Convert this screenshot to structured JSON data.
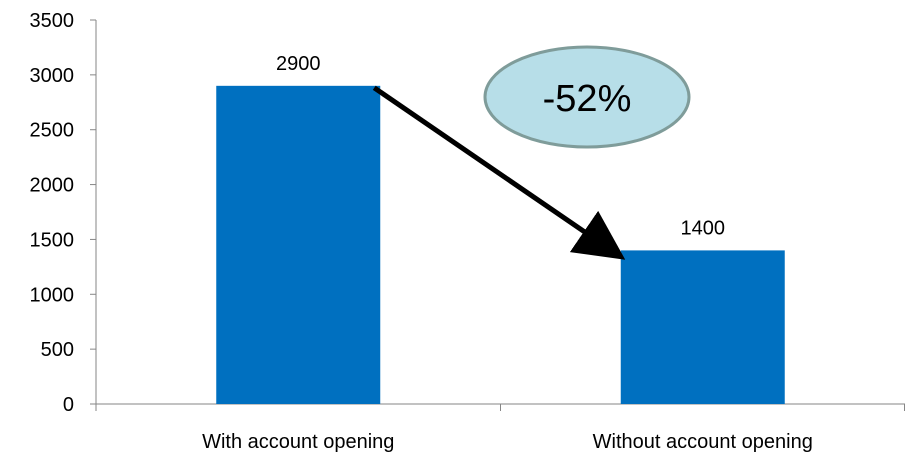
{
  "chart_data": {
    "type": "bar",
    "categories": [
      "With account opening",
      "Without account opening"
    ],
    "values": [
      2900,
      1400
    ],
    "ylim": [
      0,
      3500
    ],
    "yticks": [
      0,
      500,
      1000,
      1500,
      2000,
      2500,
      3000,
      3500
    ],
    "grid": false,
    "legend": "none",
    "bar_color": "#0070C0",
    "data_labels": [
      "2900",
      "1400"
    ],
    "annotation": {
      "text": "-52%",
      "shape": "ellipse",
      "fill": "#B7DEE8",
      "border": "#7F9C9A",
      "arrow": "from first bar to second bar"
    }
  }
}
